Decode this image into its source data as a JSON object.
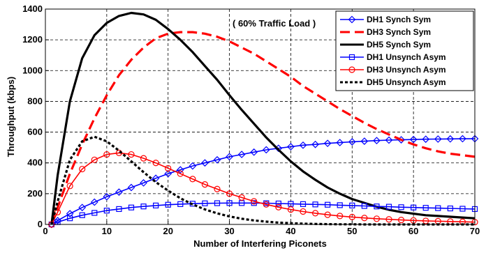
{
  "chart_data": {
    "type": "line",
    "title": "",
    "annotation": "( 60% Traffic Load )",
    "xlabel": "Number of Interfering Piconets",
    "ylabel": "Throughput (kbps)",
    "xlim": [
      0,
      70
    ],
    "ylim": [
      0,
      1400
    ],
    "xticks": [
      0,
      10,
      20,
      30,
      40,
      50,
      60,
      70
    ],
    "yticks": [
      0,
      200,
      400,
      600,
      800,
      1000,
      1200,
      1400
    ],
    "grid": true,
    "legend_position": "top-right",
    "x": [
      1,
      2,
      4,
      6,
      8,
      10,
      12,
      14,
      16,
      18,
      20,
      22,
      24,
      26,
      28,
      30,
      32,
      34,
      36,
      38,
      40,
      42,
      44,
      46,
      48,
      50,
      52,
      54,
      56,
      58,
      60,
      62,
      64,
      66,
      68,
      70
    ],
    "series": [
      {
        "name": "DH1 Synch Sym",
        "color": "#0000ff",
        "line_style": "solid",
        "marker": "diamond",
        "values": [
          0,
          25,
          70,
          110,
          145,
          180,
          210,
          240,
          270,
          300,
          330,
          355,
          380,
          400,
          420,
          440,
          455,
          470,
          485,
          495,
          505,
          515,
          520,
          527,
          532,
          537,
          541,
          545,
          548,
          550,
          552,
          554,
          555,
          556,
          557,
          557
        ]
      },
      {
        "name": "DH3 Synch Sym",
        "color": "#ff0000",
        "line_style": "dashed",
        "marker": "none",
        "values": [
          0,
          110,
          330,
          520,
          690,
          840,
          970,
          1070,
          1150,
          1210,
          1240,
          1250,
          1250,
          1240,
          1220,
          1190,
          1150,
          1110,
          1060,
          1010,
          960,
          900,
          850,
          800,
          750,
          705,
          660,
          620,
          585,
          550,
          520,
          495,
          475,
          460,
          450,
          440
        ]
      },
      {
        "name": "DH5 Synch Sym",
        "color": "#000000",
        "line_style": "solid",
        "marker": "none",
        "values": [
          0,
          320,
          800,
          1080,
          1230,
          1310,
          1355,
          1375,
          1365,
          1330,
          1270,
          1200,
          1120,
          1030,
          940,
          840,
          745,
          655,
          565,
          485,
          410,
          345,
          290,
          240,
          200,
          165,
          140,
          115,
          95,
          80,
          70,
          60,
          55,
          50,
          45,
          40
        ]
      },
      {
        "name": "DH1 Unsynch Asym",
        "color": "#0000ff",
        "line_style": "solid",
        "marker": "square",
        "values": [
          0,
          15,
          40,
          60,
          75,
          90,
          100,
          110,
          117,
          123,
          128,
          132,
          135,
          137,
          138,
          139,
          139,
          139,
          138,
          136,
          134,
          132,
          130,
          128,
          125,
          123,
          120,
          117,
          115,
          112,
          110,
          108,
          106,
          104,
          102,
          100
        ]
      },
      {
        "name": "DH3 Unsynch Asym",
        "color": "#ff0000",
        "line_style": "solid",
        "marker": "circle",
        "values": [
          0,
          80,
          250,
          360,
          420,
          455,
          465,
          455,
          430,
          400,
          365,
          330,
          295,
          260,
          230,
          200,
          175,
          150,
          130,
          112,
          97,
          84,
          73,
          63,
          55,
          48,
          42,
          37,
          33,
          29,
          26,
          23,
          21,
          19,
          17,
          15
        ]
      },
      {
        "name": "DH5 Unsynch Asym",
        "color": "#000000",
        "line_style": "dotted",
        "marker": "none",
        "values": [
          0,
          150,
          420,
          540,
          570,
          540,
          480,
          410,
          340,
          275,
          220,
          170,
          130,
          98,
          72,
          52,
          37,
          26,
          18,
          12,
          8,
          5,
          3,
          2,
          1,
          1,
          0,
          0,
          0,
          0,
          0,
          0,
          0,
          0,
          0,
          0
        ]
      }
    ]
  }
}
